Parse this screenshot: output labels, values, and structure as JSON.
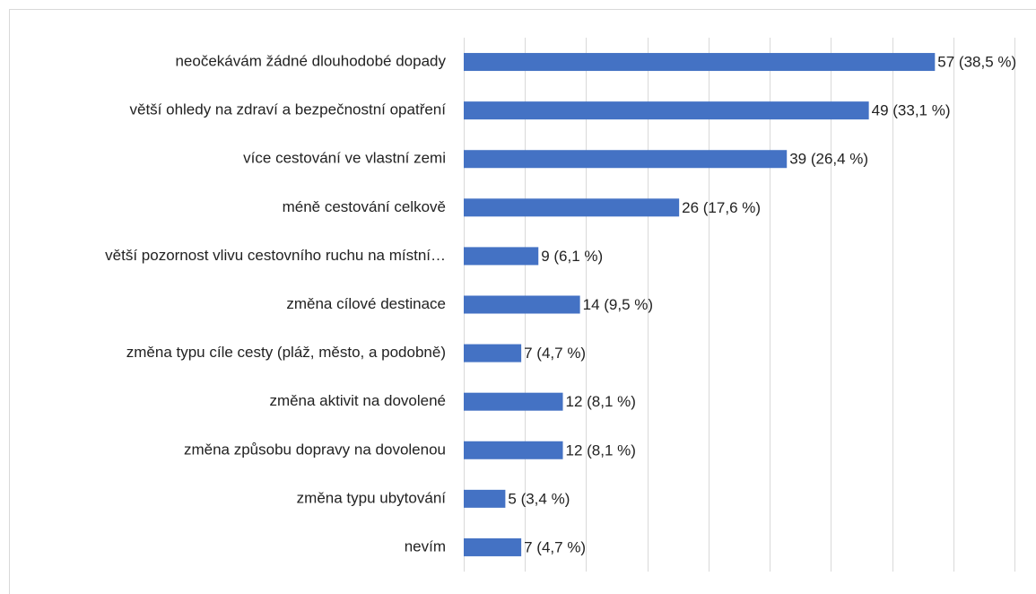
{
  "chart_data": {
    "type": "bar",
    "orientation": "horizontal",
    "categories": [
      "neočekávám žádné dlouhodobé dopady",
      "větší ohledy na zdraví a bezpečnostní opatření",
      "více cestování ve vlastní zemi",
      "méně cestování celkově",
      "větší pozornost vlivu cestovního ruchu na místní…",
      "změna cílové destinace",
      "změna typu cíle cesty (pláž, město, a podobně)",
      "změna aktivit na dovolené",
      "změna způsobu dopravy na dovolenou",
      "změna typu ubytování",
      "nevím"
    ],
    "values": [
      38.5,
      33.1,
      26.4,
      17.6,
      6.1,
      9.5,
      4.7,
      8.1,
      8.1,
      3.4,
      4.7
    ],
    "value_labels": [
      "57 (38,5 %)",
      "49 (33,1 %)",
      "39 (26,4 %)",
      "26 (17,6 %)",
      "9 (6,1 %)",
      "14 (9,5 %)",
      "7 (4,7 %)",
      "12 (8,1 %)",
      "12 (8,1 %)",
      "5 (3,4 %)",
      "7 (4,7 %)"
    ],
    "color": "#4472c4",
    "xlim": [
      0,
      45
    ],
    "xticks": [
      0,
      5,
      10,
      15,
      20,
      25,
      30,
      35,
      40,
      45
    ],
    "grid": true
  }
}
